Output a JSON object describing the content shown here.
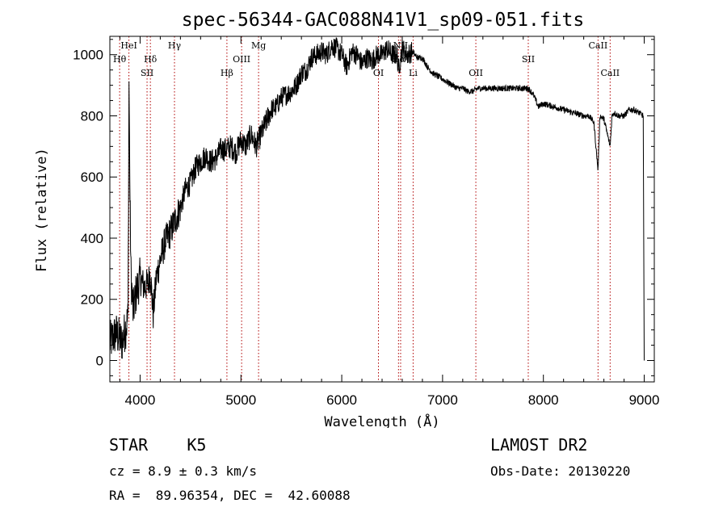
{
  "chart_data": {
    "type": "line",
    "title": "spec-56344-GAC088N41V1_sp09-051.fits",
    "xlabel": "Wavelength (Å)",
    "ylabel": "Flux (relative)",
    "xlim": [
      3700,
      9100
    ],
    "ylim": [
      -70,
      1060
    ],
    "xticks": [
      4000,
      5000,
      6000,
      7000,
      8000,
      9000
    ],
    "yticks": [
      0,
      200,
      400,
      600,
      800,
      1000
    ],
    "grid": false,
    "series": [
      {
        "values_x": [
          3700,
          3760,
          3820,
          3860,
          3880,
          3890,
          3900,
          3910,
          3930,
          3960,
          4000,
          4040,
          4080,
          4100,
          4130,
          4160,
          4200,
          4250,
          4300,
          4350,
          4400,
          4450,
          4500,
          4550,
          4600,
          4650,
          4700,
          4750,
          4800,
          4850,
          4900,
          4950,
          5000,
          5050,
          5100,
          5150,
          5200,
          5250,
          5300,
          5350,
          5400,
          5450,
          5500,
          5550,
          5600,
          5650,
          5700,
          5750,
          5800,
          5850,
          5900,
          5950,
          6000,
          6050,
          6100,
          6150,
          6200,
          6250,
          6300,
          6350,
          6400,
          6450,
          6500,
          6550,
          6563,
          6600,
          6650,
          6700,
          6750,
          6800,
          6850,
          6900,
          6950,
          7000,
          7050,
          7100,
          7150,
          7200,
          7250,
          7300,
          7350,
          7400,
          7450,
          7500,
          7600,
          7700,
          7800,
          7850,
          7900,
          7950,
          8000,
          8100,
          8200,
          8300,
          8400,
          8450,
          8500,
          8542,
          8560,
          8600,
          8662,
          8680,
          8700,
          8750,
          8800,
          8850,
          8900,
          8950,
          8990,
          9000
        ],
        "values_y": [
          60,
          90,
          60,
          110,
          140,
          920,
          520,
          280,
          160,
          220,
          270,
          240,
          250,
          290,
          150,
          270,
          330,
          390,
          420,
          460,
          500,
          560,
          580,
          630,
          650,
          670,
          650,
          660,
          690,
          690,
          700,
          680,
          720,
          700,
          740,
          700,
          740,
          780,
          820,
          830,
          860,
          870,
          880,
          900,
          940,
          950,
          990,
          1000,
          1010,
          1000,
          1030,
          1020,
          1000,
          960,
          1010,
          1000,
          970,
          990,
          980,
          1000,
          1000,
          1020,
          1000,
          1000,
          950,
          1020,
          1000,
          1010,
          990,
          990,
          960,
          940,
          930,
          920,
          910,
          900,
          890,
          890,
          880,
          880,
          890,
          890,
          890,
          890,
          890,
          890,
          890,
          890,
          870,
          830,
          840,
          830,
          820,
          810,
          800,
          800,
          780,
          620,
          800,
          790,
          700,
          800,
          810,
          800,
          800,
          820,
          820,
          810,
          800,
          0
        ],
        "color": "#000000"
      }
    ],
    "lines": [
      {
        "label": "HeI",
        "x": 3889,
        "row": 0
      },
      {
        "label": "Hθ",
        "x": 3797,
        "row": 1
      },
      {
        "label": "Hδ",
        "x": 4102,
        "row": 1
      },
      {
        "label": "SII",
        "x": 4069,
        "row": 2
      },
      {
        "label": "Hγ",
        "x": 4341,
        "row": 0
      },
      {
        "label": "Mg",
        "x": 5175,
        "row": 0
      },
      {
        "label": "OIII",
        "x": 5007,
        "row": 1
      },
      {
        "label": "Hβ",
        "x": 4861,
        "row": 2
      },
      {
        "label": "OI",
        "x": 6364,
        "row": 2
      },
      {
        "label": "Hα",
        "x": 6563,
        "row": 1
      },
      {
        "label": "NII",
        "x": 6584,
        "row": 0
      },
      {
        "label": "Li",
        "x": 6708,
        "row": 2
      },
      {
        "label": "OII",
        "x": 7330,
        "row": 2
      },
      {
        "label": "SII",
        "x": 7850,
        "row": 1
      },
      {
        "label": "CaII",
        "x": 8542,
        "row": 0
      },
      {
        "label": "CaII",
        "x": 8662,
        "row": 2
      }
    ]
  },
  "info": {
    "object": "STAR    K5",
    "survey": "LAMOST DR2",
    "cz": "cz = 8.9 ± 0.3 km/s",
    "obs_date": "Obs-Date: 20130220",
    "coords": "RA =  89.96354, DEC =  42.60088"
  }
}
